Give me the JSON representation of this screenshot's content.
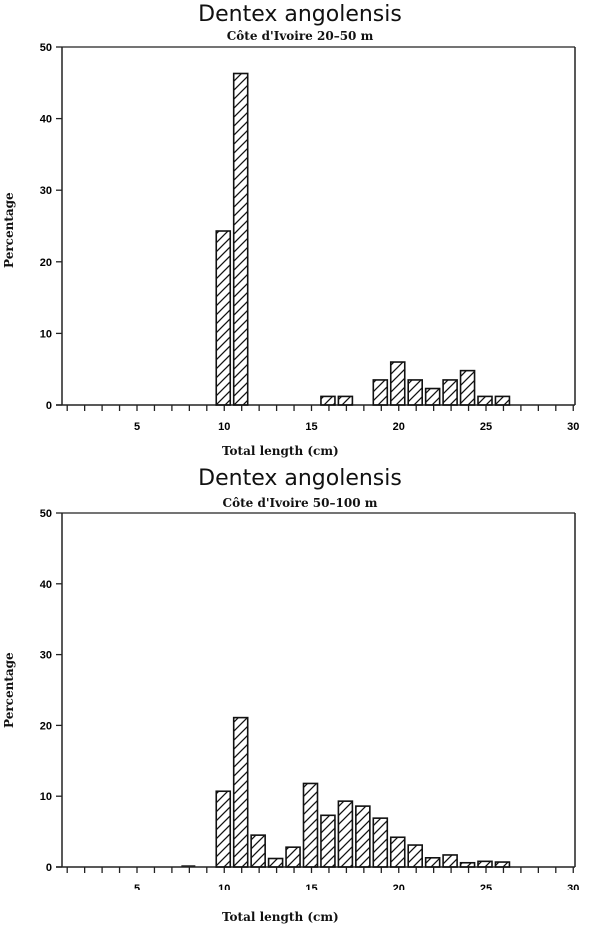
{
  "chart_data": [
    {
      "type": "bar",
      "title": "Dentex angolensis",
      "subtitle": "Côte d'Ivoire 20–50 m",
      "xlabel": "Total length (cm)",
      "ylabel": "Percentage",
      "xlim": [
        1,
        30
      ],
      "ylim": [
        0,
        50
      ],
      "xticks": [
        5,
        10,
        15,
        20,
        25,
        30
      ],
      "yticks": [
        0,
        10,
        20,
        30,
        40,
        50
      ],
      "grid": false,
      "bar_fill": "diagonal hatch",
      "categories": [
        10,
        11,
        16,
        17,
        19,
        20,
        21,
        22,
        23,
        24,
        25,
        26
      ],
      "values": [
        24.3,
        46.3,
        1.2,
        1.2,
        3.5,
        6.0,
        3.5,
        2.3,
        3.5,
        4.8,
        1.2,
        1.2
      ]
    },
    {
      "type": "bar",
      "title": "Dentex angolensis",
      "subtitle": "Côte d'Ivoire 50–100 m",
      "xlabel": "Total length (cm)",
      "ylabel": "Percentage",
      "xlim": [
        1,
        30
      ],
      "ylim": [
        0,
        50
      ],
      "xticks": [
        5,
        10,
        15,
        20,
        25,
        30
      ],
      "yticks": [
        0,
        10,
        20,
        30,
        40,
        50
      ],
      "grid": false,
      "bar_fill": "diagonal hatch",
      "categories": [
        8,
        10,
        11,
        12,
        13,
        14,
        15,
        16,
        17,
        18,
        19,
        20,
        21,
        22,
        23,
        24,
        25,
        26
      ],
      "values": [
        0.1,
        10.7,
        21.1,
        4.5,
        1.2,
        2.8,
        11.8,
        7.3,
        9.3,
        8.6,
        6.9,
        4.2,
        3.1,
        1.3,
        1.7,
        0.6,
        0.8,
        0.7
      ]
    }
  ]
}
